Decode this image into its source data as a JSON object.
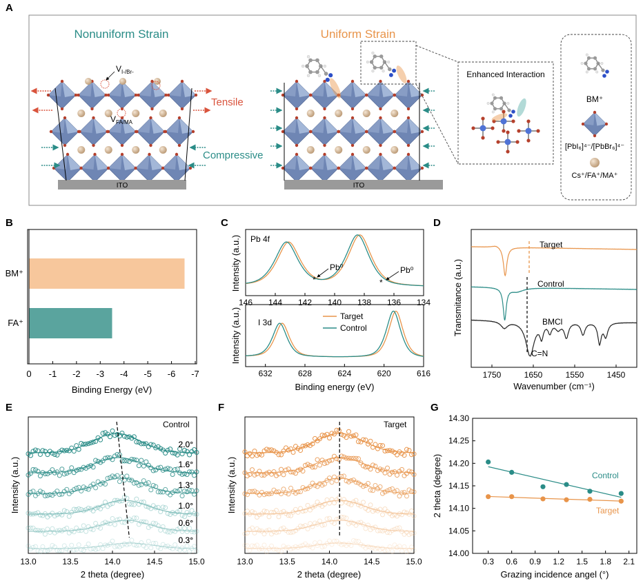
{
  "colors": {
    "teal": "#2a8c87",
    "orange": "#e8944a",
    "red": "#d9533c",
    "black": "#222222",
    "octa": "#6f86b4",
    "octa_light": "#a9bddc",
    "sphere": "#d9bfa0",
    "target_light": "#f4c99e",
    "control_light": "#7fc1bd",
    "bar_bm": "#f7c79c",
    "bar_fa": "#5aa49e"
  },
  "panelA": {
    "letter": "A",
    "left_title": "Nonuniform Strain",
    "right_title": "Uniform Strain",
    "vacancy_halide": "V",
    "vacancy_halide_sub": "I-/Br-",
    "vacancy_cation": "V",
    "vacancy_cation_sub": "FA/MA",
    "tensile": "Tensile",
    "compressive": "Compressive",
    "substrate": "ITO",
    "interaction": "Enhanced Interaction",
    "legend_bm": "BM⁺",
    "legend_octa": "[PbI₆]⁴⁻/[PbBr₆]⁴⁻",
    "legend_cation": "Cs⁺/FA⁺/MA⁺"
  },
  "panelB": {
    "letter": "B",
    "chart_data": {
      "type": "bar",
      "orientation": "horizontal",
      "categories": [
        "BM⁺",
        "FA⁺"
      ],
      "values": [
        -6.55,
        -3.5
      ],
      "xlabel": "Binding Energy (eV)",
      "xlim": [
        0,
        -7
      ],
      "xticks": [
        0,
        -1,
        -2,
        -3,
        -4,
        -5,
        -6,
        -7
      ]
    }
  },
  "panelC": {
    "letter": "C",
    "chart_data": [
      {
        "type": "line",
        "label": "Pb 4f",
        "xlim": [
          146,
          134
        ],
        "xticks": [
          146,
          144,
          142,
          140,
          138,
          136,
          134
        ],
        "ylabel": "Intensity (a.u.)",
        "annotations": [
          "Pb⁰",
          "Pb⁰"
        ],
        "series": [
          {
            "name": "Target",
            "peaks": [
              {
                "center": 143.1,
                "width": 0.85,
                "height": 0.85
              },
              {
                "center": 138.3,
                "width": 0.85,
                "height": 1.0
              }
            ]
          },
          {
            "name": "Control",
            "peaks": [
              {
                "center": 143.25,
                "width": 0.85,
                "height": 0.85
              },
              {
                "center": 138.45,
                "width": 0.85,
                "height": 1.0
              }
            ]
          }
        ]
      },
      {
        "type": "line",
        "label": "I 3d",
        "xlim": [
          634,
          616
        ],
        "xticks": [
          632,
          628,
          624,
          620,
          616
        ],
        "xlabel": "Binding energy (eV)",
        "ylabel": "Intensity (a.u.)",
        "series": [
          {
            "name": "Target",
            "peaks": [
              {
                "center": 630.3,
                "width": 0.8,
                "height": 0.72
              },
              {
                "center": 618.8,
                "width": 0.8,
                "height": 1.0
              }
            ]
          },
          {
            "name": "Control",
            "peaks": [
              {
                "center": 630.55,
                "width": 0.8,
                "height": 0.72
              },
              {
                "center": 619.05,
                "width": 0.8,
                "height": 1.0
              }
            ]
          }
        ]
      }
    ]
  },
  "panelD": {
    "letter": "D",
    "chart_data": {
      "type": "line",
      "xlim": [
        1800,
        1400
      ],
      "xticks": [
        1750,
        1650,
        1550,
        1450
      ],
      "xlabel": "Wavenumber (cm⁻¹)",
      "ylabel": "Transmitance (a.u.)",
      "annotation": "C=N",
      "series": [
        {
          "name": "Target"
        },
        {
          "name": "Control"
        },
        {
          "name": "BMCl"
        }
      ]
    }
  },
  "panelE": {
    "letter": "E",
    "chart_data": {
      "type": "scatter",
      "title": "Control",
      "xlim": [
        13.0,
        15.0
      ],
      "xticks": [
        "13.0",
        "13.5",
        "14.0",
        "14.5",
        "15.0"
      ],
      "xlabel": "2 theta (degree)",
      "ylabel": "Intensity (a.u.)",
      "angles": [
        "2.0°",
        "1.6°",
        "1.3°",
        "1.0°",
        "0.6°",
        "0.3°"
      ],
      "peak_centers": [
        14.05,
        14.07,
        14.1,
        14.14,
        14.16,
        14.2
      ]
    }
  },
  "panelF": {
    "letter": "F",
    "chart_data": {
      "type": "scatter",
      "title": "Target",
      "xlim": [
        13.0,
        15.0
      ],
      "xticks": [
        "13.0",
        "13.5",
        "14.0",
        "14.5",
        "15.0"
      ],
      "xlabel": "2 theta (degree)",
      "ylabel": "Intensity (a.u.)",
      "angles": [
        "2.0°",
        "1.6°",
        "1.3°",
        "1.0°",
        "0.6°",
        "0.3°"
      ],
      "peak_centers": [
        14.12,
        14.12,
        14.12,
        14.12,
        14.12,
        14.12
      ]
    }
  },
  "panelG": {
    "letter": "G",
    "chart_data": {
      "type": "scatter",
      "xlim": [
        0.1,
        2.2
      ],
      "ylim": [
        14.0,
        14.3
      ],
      "xticks": [
        "0.3",
        "0.6",
        "0.9",
        "1.2",
        "1.5",
        "1.8",
        "2.1"
      ],
      "yticks": [
        "14.00",
        "14.05",
        "14.10",
        "14.15",
        "14.20",
        "14.25",
        "14.30"
      ],
      "xlabel": "Grazing incidence angel (°)",
      "ylabel": "2 theta (degree)",
      "x": [
        0.3,
        0.6,
        1.0,
        1.3,
        1.6,
        2.0
      ],
      "series": [
        {
          "name": "Control",
          "values": [
            14.203,
            14.18,
            14.148,
            14.153,
            14.138,
            14.133
          ]
        },
        {
          "name": "Target",
          "values": [
            14.126,
            14.126,
            14.121,
            14.119,
            14.12,
            14.116
          ]
        }
      ]
    }
  }
}
